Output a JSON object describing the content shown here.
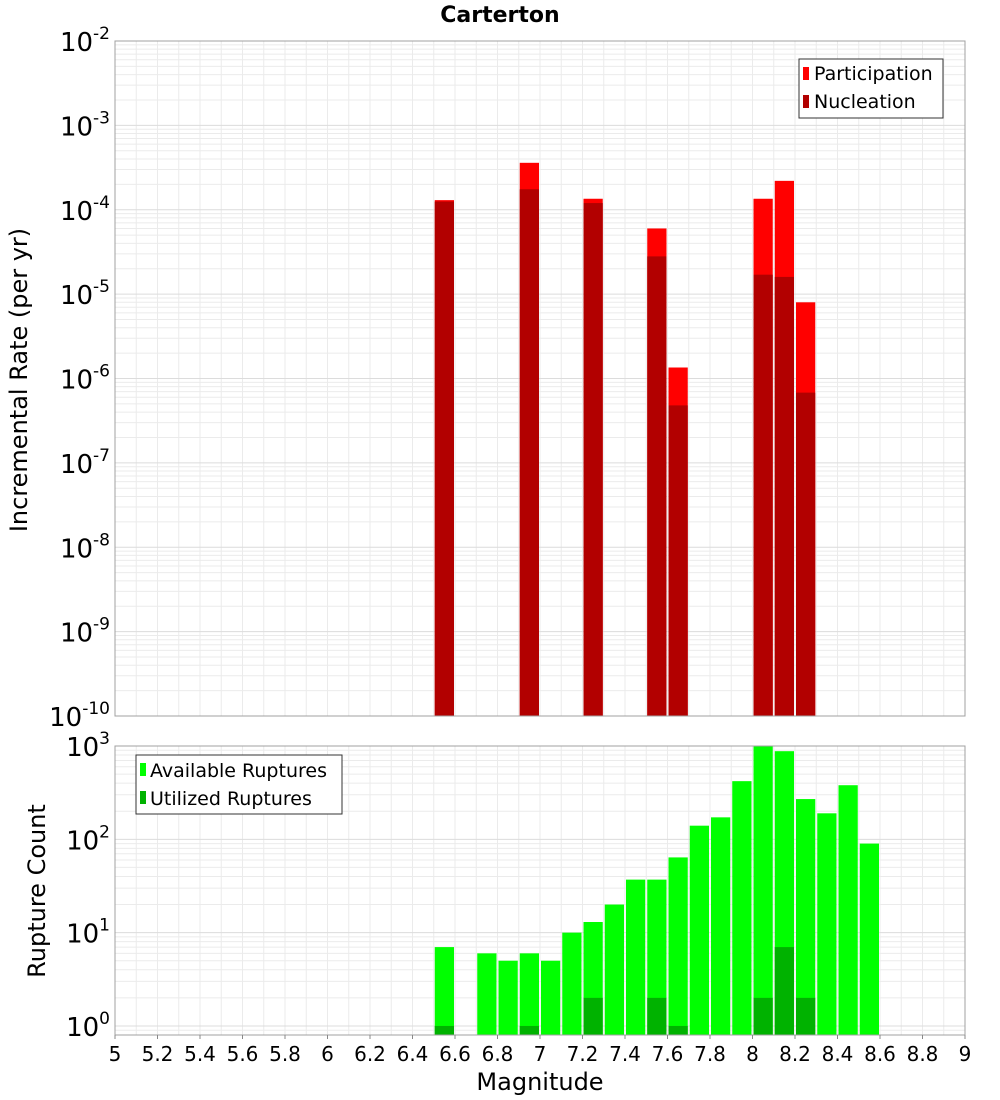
{
  "title": "Carterton",
  "colors": {
    "participation": "#ff0000",
    "nucleation": "#b20000",
    "available": "#00ff00",
    "utilized": "#00b200",
    "grid": "#ebebeb",
    "frame": "#a0a0a0"
  },
  "chart_data": [
    {
      "type": "bar",
      "title": "Carterton",
      "xlabel": "Magnitude",
      "ylabel": "Incremental Rate (per yr)",
      "y_scale": "log",
      "ylim": [
        1e-10,
        0.01
      ],
      "y_tick_labels": [
        "10^-10",
        "10^-9",
        "10^-8",
        "10^-7",
        "10^-6",
        "10^-5",
        "10^-4",
        "10^-3",
        "10^-2"
      ],
      "xlim": [
        5,
        9
      ],
      "bin_width": 0.1,
      "legend_position": "top-right",
      "series": [
        {
          "name": "Participation",
          "x": [
            6.55,
            6.95,
            7.25,
            7.55,
            7.65,
            8.05,
            8.15,
            8.25
          ],
          "values": [
            0.00013,
            0.00036,
            0.000135,
            6e-05,
            1.35e-06,
            0.000135,
            0.00022,
            8e-06
          ]
        },
        {
          "name": "Nucleation",
          "x": [
            6.55,
            6.95,
            7.25,
            7.55,
            7.65,
            8.05,
            8.15,
            8.25
          ],
          "values": [
            0.000125,
            0.000175,
            0.00012,
            2.8e-05,
            4.8e-07,
            1.7e-05,
            1.6e-05,
            6.8e-07
          ]
        }
      ]
    },
    {
      "type": "bar",
      "xlabel": "Magnitude",
      "ylabel": "Rupture Count",
      "y_scale": "log",
      "ylim": [
        0.8,
        1000
      ],
      "y_tick_labels": [
        "10^0",
        "10^1",
        "10^2",
        "10^3"
      ],
      "xlim": [
        5,
        9
      ],
      "x_ticks": [
        "5",
        "5.2",
        "5.4",
        "5.6",
        "5.8",
        "6",
        "6.2",
        "6.4",
        "6.6",
        "6.8",
        "7",
        "7.2",
        "7.4",
        "7.6",
        "7.8",
        "8",
        "8.2",
        "8.4",
        "8.6",
        "8.8",
        "9"
      ],
      "bin_width": 0.1,
      "legend_position": "top-left",
      "series": [
        {
          "name": "Available Ruptures",
          "x": [
            6.55,
            6.75,
            6.85,
            6.95,
            7.05,
            7.15,
            7.25,
            7.35,
            7.45,
            7.55,
            7.65,
            7.75,
            7.85,
            7.95,
            8.05,
            8.15,
            8.25,
            8.35,
            8.45,
            8.55
          ],
          "values": [
            7,
            6,
            5,
            6,
            5,
            10,
            13,
            20,
            37,
            37,
            64,
            140,
            172,
            420,
            1000,
            880,
            270,
            190,
            380,
            90
          ]
        },
        {
          "name": "Utilized Ruptures",
          "x": [
            6.55,
            6.95,
            7.25,
            7.55,
            7.65,
            8.05,
            8.15,
            8.25
          ],
          "values": [
            1,
            1,
            2,
            2,
            1,
            2,
            7,
            2
          ]
        }
      ]
    }
  ]
}
